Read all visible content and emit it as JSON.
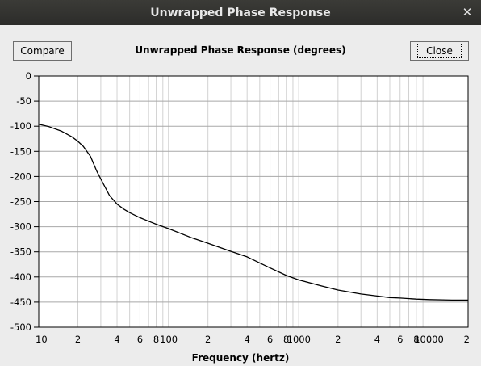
{
  "window": {
    "title": "Unwrapped Phase Response",
    "close_glyph": "✕"
  },
  "toolbar": {
    "compare_label": "Compare",
    "close_label": "Close"
  },
  "chart_data": {
    "type": "line",
    "title": "Unwrapped Phase Response (degrees)",
    "xlabel": "Frequency (hertz)",
    "ylabel": "",
    "xscale": "log",
    "xlim": [
      10,
      20000
    ],
    "ylim": [
      -500,
      0
    ],
    "grid": true,
    "y_ticks": [
      "0",
      "-50",
      "-100",
      "-150",
      "-200",
      "-250",
      "-300",
      "-350",
      "-400",
      "-450",
      "-500"
    ],
    "x_ticks": [
      {
        "value": 10,
        "label": "10"
      },
      {
        "value": 20,
        "label": "2"
      },
      {
        "value": 40,
        "label": "4"
      },
      {
        "value": 60,
        "label": "6"
      },
      {
        "value": 80,
        "label": "8"
      },
      {
        "value": 100,
        "label": "100"
      },
      {
        "value": 200,
        "label": "2"
      },
      {
        "value": 400,
        "label": "4"
      },
      {
        "value": 600,
        "label": "6"
      },
      {
        "value": 800,
        "label": "8"
      },
      {
        "value": 1000,
        "label": "1000"
      },
      {
        "value": 2000,
        "label": "2"
      },
      {
        "value": 4000,
        "label": "4"
      },
      {
        "value": 6000,
        "label": "6"
      },
      {
        "value": 8000,
        "label": "8"
      },
      {
        "value": 10000,
        "label": "10000"
      },
      {
        "value": 20000,
        "label": "2"
      }
    ],
    "series": [
      {
        "color": "#000000",
        "x": [
          10,
          12,
          15,
          18,
          20,
          22,
          25,
          28,
          30,
          35,
          40,
          45,
          50,
          60,
          70,
          80,
          100,
          150,
          200,
          300,
          400,
          500,
          600,
          800,
          1000,
          1500,
          2000,
          3000,
          4000,
          5000,
          6000,
          8000,
          10000,
          15000,
          20000
        ],
        "y": [
          -96,
          -101,
          -110,
          -121,
          -130,
          -140,
          -160,
          -190,
          -205,
          -238,
          -255,
          -265,
          -272,
          -282,
          -289,
          -295,
          -304,
          -322,
          -333,
          -349,
          -360,
          -372,
          -382,
          -397,
          -406,
          -418,
          -426,
          -434,
          -438,
          -441,
          -442,
          -444,
          -445,
          -446,
          -446
        ]
      }
    ]
  }
}
